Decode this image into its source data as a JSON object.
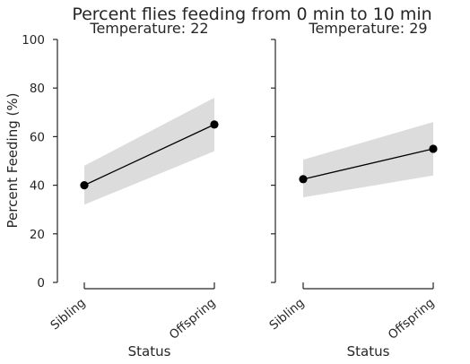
{
  "chart_data": {
    "type": "line",
    "title": "Percent flies feeding from 0 min to 10 min",
    "ylabel": "Percent Feeding (%)",
    "ylim": [
      0,
      100
    ],
    "yticks": [
      0,
      20,
      40,
      60,
      80,
      100
    ],
    "panels": [
      {
        "title": "Temperature: 22",
        "xlabel": "Status",
        "categories": [
          "Sibling",
          "Offspring"
        ],
        "values": [
          40,
          65
        ],
        "ci_low": [
          32,
          54
        ],
        "ci_high": [
          48,
          76
        ]
      },
      {
        "title": "Temperature: 29",
        "xlabel": "Status",
        "categories": [
          "Sibling",
          "Offspring"
        ],
        "values": [
          42.5,
          55
        ],
        "ci_low": [
          35,
          44
        ],
        "ci_high": [
          50.5,
          66
        ]
      }
    ],
    "grid": false,
    "colors": {
      "band": "#dcdcdc",
      "line": "#000000",
      "axis": "#262626"
    }
  }
}
